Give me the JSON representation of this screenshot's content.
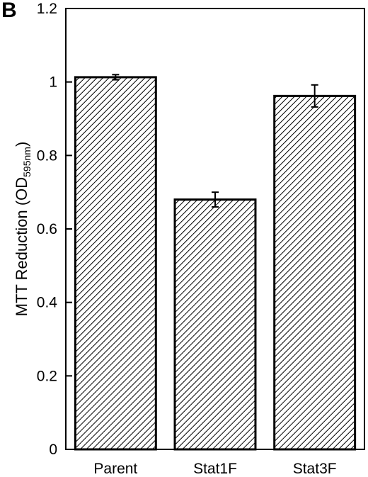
{
  "panel_label": "B",
  "chart_data": {
    "type": "bar",
    "categories": [
      "Parent",
      "Stat1F",
      "Stat3F"
    ],
    "values": [
      1.013,
      0.68,
      0.962
    ],
    "errors": [
      0.007,
      0.02,
      0.03
    ],
    "ylim": [
      0,
      1.2
    ],
    "yticks": [
      "0",
      "0.2",
      "0.4",
      "0.6",
      "0.8",
      "1",
      "1.2"
    ],
    "ylabel_main": "MTT Reduction (OD",
    "ylabel_sub": "595nm",
    "ylabel_close": ")",
    "grid": false,
    "bar_fill": "hatched"
  }
}
